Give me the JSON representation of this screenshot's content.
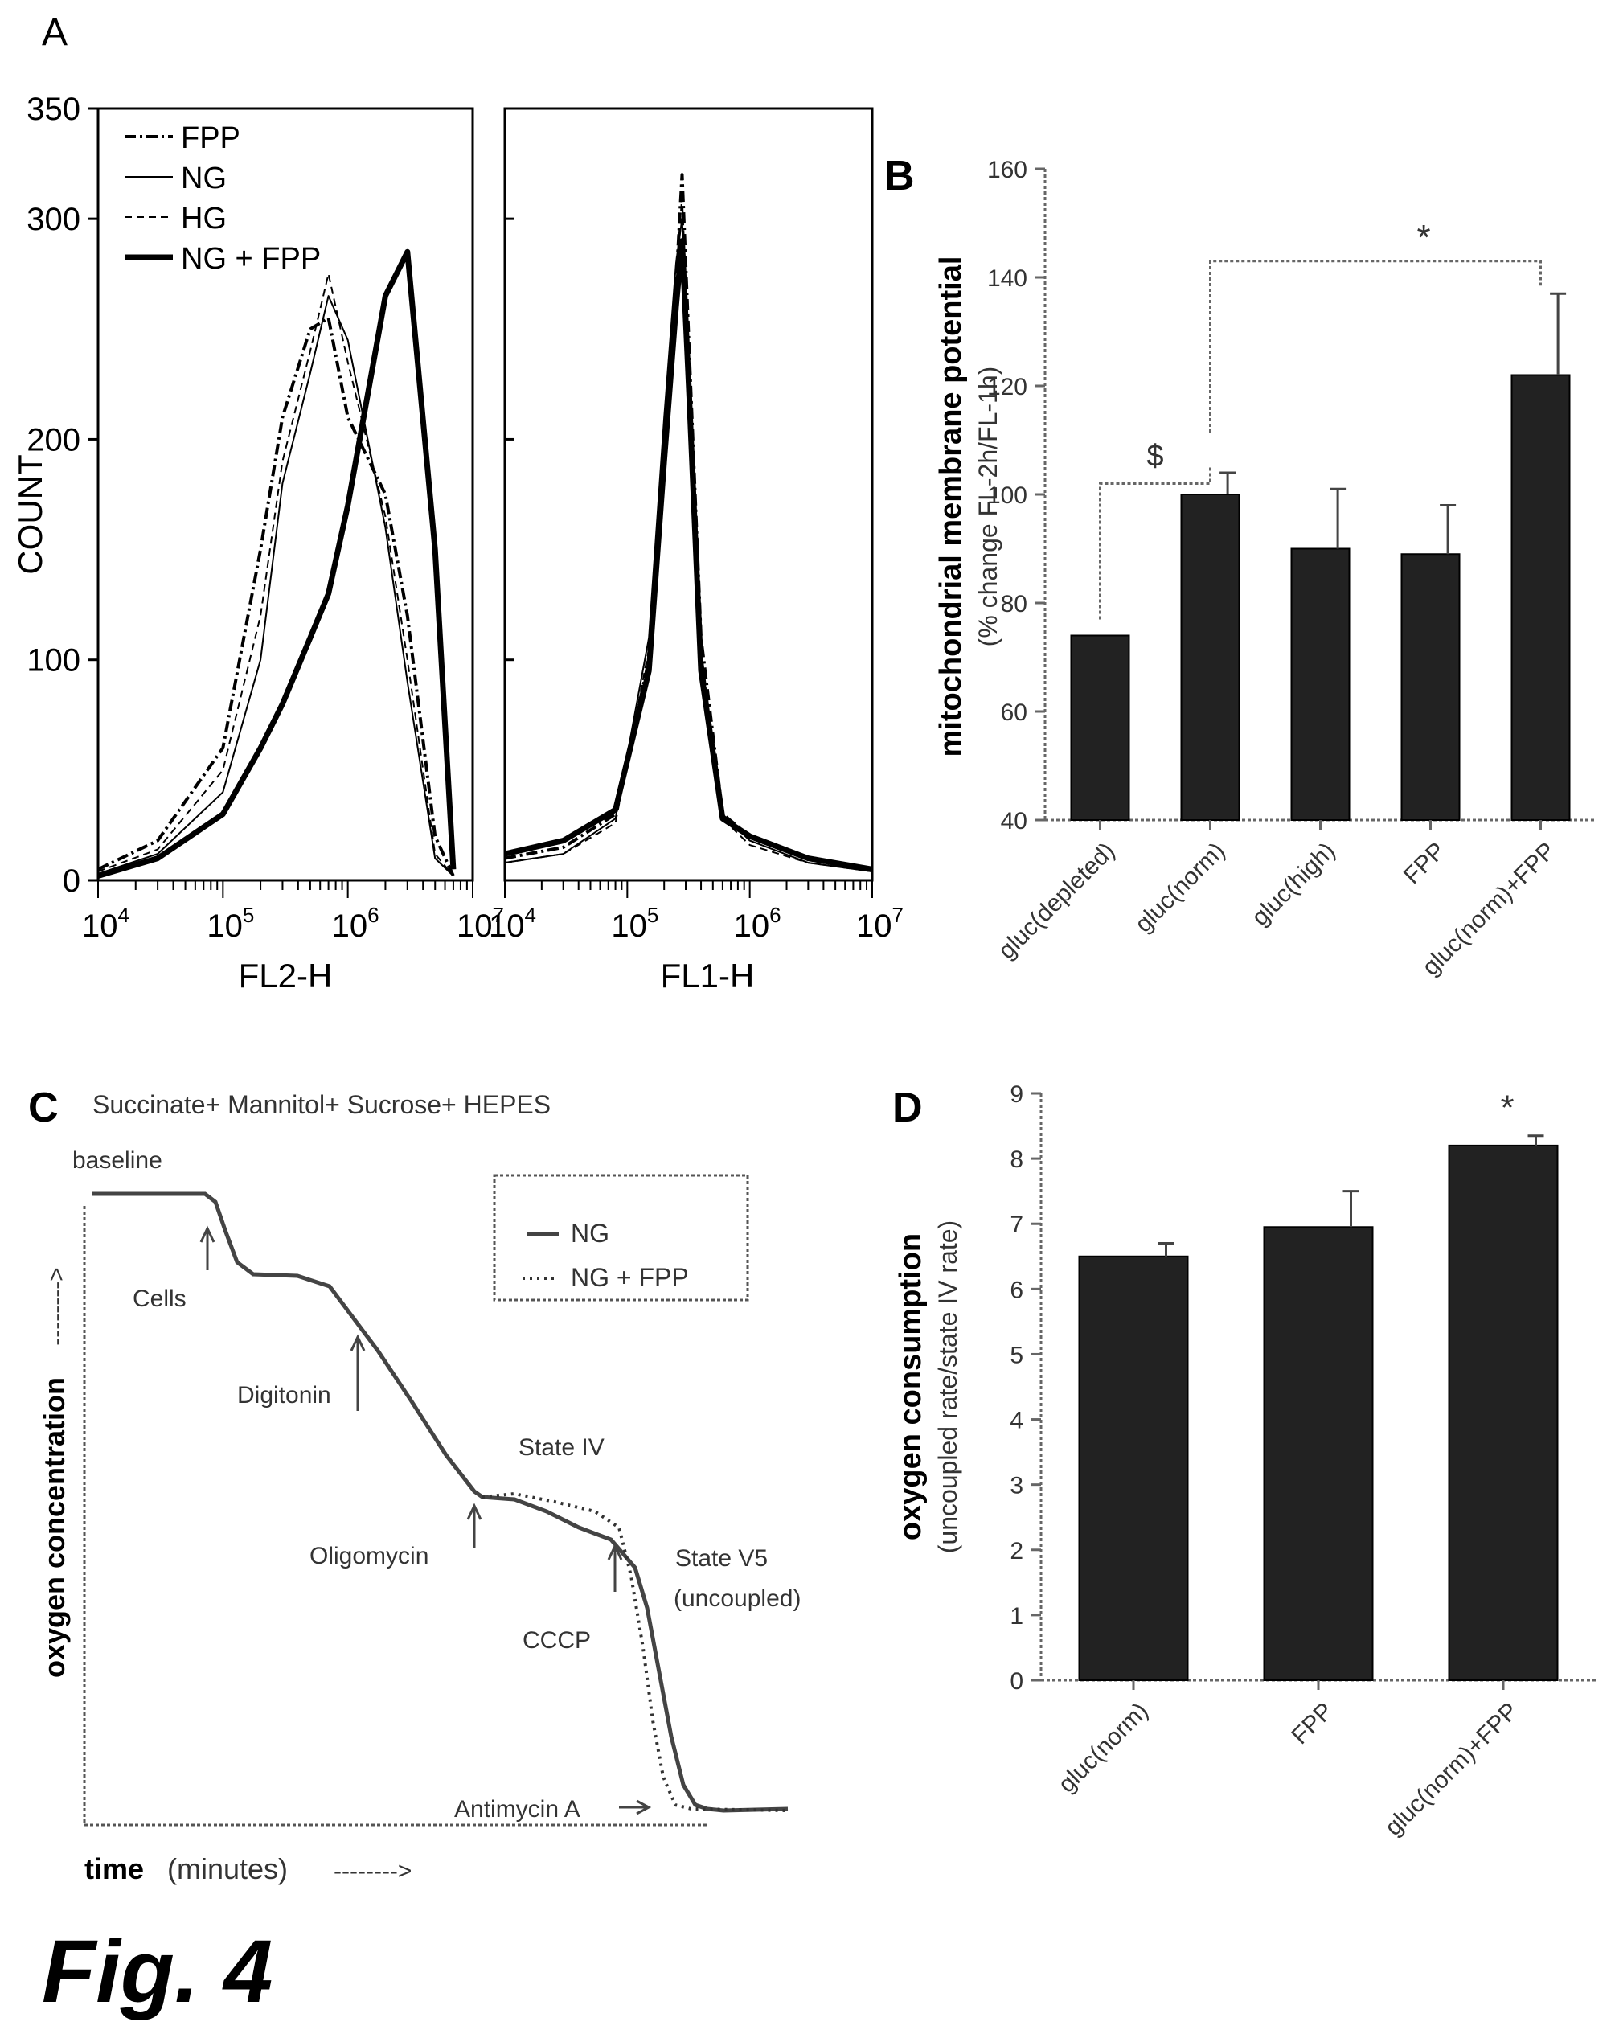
{
  "figure_label": "Fig. 4",
  "chart_data": [
    {
      "panel": "A",
      "type": "line",
      "ylabel": "COUNT",
      "ylim": [
        0,
        350
      ],
      "yticks": [
        "0",
        "100",
        "200",
        "300",
        "350"
      ],
      "x_scale": "log",
      "legend": {
        "placement": "top-left",
        "entries": [
          "FPP",
          "NG",
          "HG",
          "NG + FPP"
        ]
      },
      "subplots": [
        {
          "xlabel": "FL2-H",
          "xlim": [
            10000,
            10000000
          ],
          "xtick_bases": [
            "10",
            "10",
            "10",
            "10"
          ],
          "xtick_exps": [
            "4",
            "5",
            "6",
            "7"
          ],
          "series": [
            {
              "name": "FPP",
              "x": [
                10000,
                30000,
                100000,
                200000,
                300000,
                500000,
                700000,
                1000000,
                2000000,
                3000000,
                5000000,
                7000000
              ],
              "y": [
                5,
                18,
                60,
                150,
                210,
                250,
                255,
                210,
                175,
                120,
                20,
                2
              ]
            },
            {
              "name": "NG",
              "x": [
                10000,
                30000,
                100000,
                200000,
                300000,
                500000,
                700000,
                1000000,
                2000000,
                3000000,
                5000000,
                7000000
              ],
              "y": [
                3,
                12,
                40,
                100,
                180,
                230,
                265,
                245,
                160,
                90,
                10,
                2
              ]
            },
            {
              "name": "HG",
              "x": [
                10000,
                30000,
                100000,
                200000,
                300000,
                500000,
                700000,
                1000000,
                2000000,
                3000000,
                5000000,
                7000000
              ],
              "y": [
                4,
                14,
                50,
                120,
                190,
                240,
                275,
                235,
                165,
                100,
                12,
                2
              ]
            },
            {
              "name": "NG + FPP",
              "x": [
                10000,
                30000,
                100000,
                200000,
                300000,
                500000,
                700000,
                1000000,
                2000000,
                3000000,
                5000000,
                7000000
              ],
              "y": [
                2,
                10,
                30,
                60,
                80,
                110,
                130,
                170,
                265,
                285,
                150,
                5
              ]
            }
          ]
        },
        {
          "xlabel": "FL1-H",
          "xlim": [
            10000,
            10000000
          ],
          "xtick_bases": [
            "10",
            "10",
            "10",
            "10"
          ],
          "xtick_exps": [
            "4",
            "5",
            "6",
            "7"
          ],
          "series": [
            {
              "name": "FPP",
              "x": [
                10000,
                30000,
                80000,
                150000,
                200000,
                250000,
                280000,
                320000,
                400000,
                600000,
                1000000,
                3000000,
                10000000
              ],
              "y": [
                10,
                15,
                30,
                100,
                200,
                270,
                320,
                240,
                110,
                30,
                20,
                10,
                5
              ]
            },
            {
              "name": "NG",
              "x": [
                10000,
                30000,
                80000,
                150000,
                200000,
                250000,
                280000,
                320000,
                400000,
                600000,
                1000000,
                3000000,
                10000000
              ],
              "y": [
                8,
                12,
                28,
                110,
                210,
                280,
                300,
                230,
                100,
                30,
                18,
                8,
                4
              ]
            },
            {
              "name": "HG",
              "x": [
                10000,
                30000,
                80000,
                150000,
                200000,
                250000,
                280000,
                320000,
                400000,
                600000,
                1000000,
                3000000,
                10000000
              ],
              "y": [
                8,
                12,
                26,
                105,
                205,
                275,
                310,
                235,
                105,
                28,
                16,
                8,
                4
              ]
            },
            {
              "name": "NG + FPP",
              "x": [
                10000,
                30000,
                80000,
                150000,
                200000,
                250000,
                280000,
                320000,
                400000,
                600000,
                1000000,
                3000000,
                10000000
              ],
              "y": [
                12,
                18,
                32,
                95,
                190,
                260,
                290,
                220,
                95,
                28,
                20,
                10,
                5
              ]
            }
          ]
        }
      ]
    },
    {
      "panel": "B",
      "type": "bar",
      "ylabel": "mitochondrial membrane potential",
      "ylabel2": "(% change FL-2h/FL-1h)",
      "ylim": [
        40,
        160
      ],
      "yticks": [
        40,
        60,
        80,
        100,
        120,
        140,
        160
      ],
      "categories": [
        "gluc(depleted)",
        "gluc(norm)",
        "gluc(high)",
        "FPP",
        "gluc(norm)+FPP"
      ],
      "values": [
        74,
        100,
        90,
        89,
        122
      ],
      "errors": [
        0,
        4,
        11,
        9,
        15
      ],
      "annotations": [
        {
          "text": "$",
          "from": "gluc(depleted)",
          "to": "gluc(norm)"
        },
        {
          "text": "*",
          "from": "gluc(norm)",
          "to": "gluc(norm)+FPP"
        }
      ]
    },
    {
      "panel": "C",
      "type": "line",
      "title": "Succinate+ Mannitol+ Sucrose+ HEPES",
      "xlabel_bold": "time",
      "xlabel_rest": "(minutes)",
      "xlabel_arrow": "-------->",
      "ylabel": "oxygen concentration",
      "ylabel_arrow": "-------->",
      "legend": {
        "placement": "top-right",
        "entries": [
          "NG",
          "NG + FPP"
        ]
      },
      "annotations": [
        "baseline",
        "Cells",
        "Digitonin",
        "State IV",
        "Oligomycin",
        "State V5",
        "(uncoupled)",
        "CCCP",
        "Antimycin A"
      ]
    },
    {
      "panel": "D",
      "type": "bar",
      "ylabel": "oxygen consumption",
      "ylabel2": "(uncoupled rate/state IV rate)",
      "ylim": [
        0,
        9
      ],
      "yticks": [
        0,
        1,
        2,
        3,
        4,
        5,
        6,
        7,
        8,
        9
      ],
      "categories": [
        "gluc(norm)",
        "FPP",
        "gluc(norm)+FPP"
      ],
      "values": [
        6.5,
        6.95,
        8.2
      ],
      "errors": [
        0.2,
        0.55,
        0.15
      ],
      "annotations": [
        {
          "text": "*",
          "category": "gluc(norm)+FPP"
        }
      ]
    }
  ]
}
